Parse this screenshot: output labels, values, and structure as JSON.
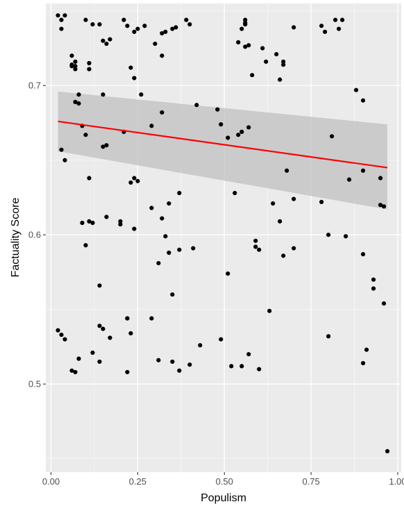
{
  "chart_data": {
    "type": "scatter",
    "title": "",
    "xlabel": "Populism",
    "ylabel": "Factuality Score",
    "xlim": [
      -0.015,
      1.01
    ],
    "ylim": [
      0.441,
      0.755
    ],
    "x_ticks": [
      0.0,
      0.25,
      0.5,
      0.75,
      1.0
    ],
    "x_tick_labels": [
      "0.00",
      "0.25",
      "0.50",
      "0.75",
      "1.00"
    ],
    "y_ticks": [
      0.5,
      0.6,
      0.7
    ],
    "y_tick_labels": [
      "0.5",
      "0.6",
      "0.7"
    ],
    "grid": true,
    "legend": "none",
    "colors": {
      "panel": "#ebebeb",
      "grid_major": "#ffffff",
      "points": "#000000",
      "fit_line": "#ff0000",
      "ci_band": "#bebebe"
    },
    "points": {
      "x": [
        0.02,
        0.03,
        0.03,
        0.04,
        0.06,
        0.06,
        0.06,
        0.07,
        0.07,
        0.07,
        0.08,
        0.08,
        0.1,
        0.11,
        0.11,
        0.12,
        0.14,
        0.15,
        0.16,
        0.17,
        0.21,
        0.22,
        0.24,
        0.25,
        0.27,
        0.3,
        0.32,
        0.32,
        0.33,
        0.35,
        0.36,
        0.39,
        0.4,
        0.54,
        0.55,
        0.56,
        0.56,
        0.57,
        0.56,
        0.56,
        0.58,
        0.61,
        0.62,
        0.65,
        0.67,
        0.7,
        0.78,
        0.79,
        0.82,
        0.83,
        0.84,
        0.07,
        0.09,
        0.1,
        0.11,
        0.15,
        0.15,
        0.16,
        0.21,
        0.23,
        0.24,
        0.24,
        0.25,
        0.26,
        0.29,
        0.32,
        0.34,
        0.37,
        0.42,
        0.48,
        0.49,
        0.51,
        0.54,
        0.57,
        0.59,
        0.64,
        0.66,
        0.67,
        0.68,
        0.81,
        0.86,
        0.88,
        0.9,
        0.9,
        0.95,
        0.03,
        0.04,
        0.09,
        0.1,
        0.11,
        0.12,
        0.14,
        0.14,
        0.15,
        0.16,
        0.2,
        0.2,
        0.22,
        0.22,
        0.23,
        0.24,
        0.29,
        0.31,
        0.32,
        0.33,
        0.34,
        0.35,
        0.37,
        0.41,
        0.51,
        0.53,
        0.55,
        0.59,
        0.6,
        0.66,
        0.67,
        0.7,
        0.78,
        0.8,
        0.85,
        0.9,
        0.93,
        0.95,
        0.96,
        0.02,
        0.03,
        0.04,
        0.06,
        0.07,
        0.08,
        0.12,
        0.14,
        0.17,
        0.22,
        0.23,
        0.29,
        0.31,
        0.35,
        0.37,
        0.4,
        0.43,
        0.49,
        0.52,
        0.55,
        0.57,
        0.6,
        0.63,
        0.7,
        0.8,
        0.9,
        0.91,
        0.93,
        0.96,
        0.97
      ],
      "y": [
        0.747,
        0.744,
        0.738,
        0.747,
        0.714,
        0.713,
        0.72,
        0.716,
        0.713,
        0.711,
        0.694,
        0.688,
        0.744,
        0.715,
        0.711,
        0.741,
        0.741,
        0.73,
        0.728,
        0.731,
        0.744,
        0.74,
        0.736,
        0.738,
        0.74,
        0.728,
        0.735,
        0.72,
        0.736,
        0.738,
        0.739,
        0.744,
        0.741,
        0.729,
        0.738,
        0.742,
        0.741,
        0.727,
        0.726,
        0.744,
        0.707,
        0.725,
        0.716,
        0.721,
        0.714,
        0.739,
        0.74,
        0.736,
        0.744,
        0.738,
        0.744,
        0.689,
        0.673,
        0.667,
        0.638,
        0.659,
        0.694,
        0.66,
        0.669,
        0.712,
        0.705,
        0.638,
        0.636,
        0.694,
        0.673,
        0.682,
        0.621,
        0.628,
        0.687,
        0.684,
        0.674,
        0.665,
        0.667,
        0.672,
        0.596,
        0.621,
        0.704,
        0.716,
        0.643,
        0.666,
        0.637,
        0.697,
        0.69,
        0.643,
        0.638,
        0.657,
        0.65,
        0.608,
        0.593,
        0.609,
        0.608,
        0.566,
        0.539,
        0.537,
        0.612,
        0.609,
        0.607,
        0.544,
        0.544,
        0.635,
        0.604,
        0.618,
        0.581,
        0.611,
        0.599,
        0.588,
        0.56,
        0.59,
        0.591,
        0.574,
        0.628,
        0.669,
        0.592,
        0.59,
        0.609,
        0.586,
        0.591,
        0.622,
        0.6,
        0.599,
        0.587,
        0.57,
        0.62,
        0.619,
        0.536,
        0.533,
        0.53,
        0.509,
        0.508,
        0.517,
        0.521,
        0.515,
        0.531,
        0.508,
        0.534,
        0.544,
        0.516,
        0.515,
        0.509,
        0.513,
        0.526,
        0.53,
        0.512,
        0.512,
        0.52,
        0.51,
        0.549,
        0.624,
        0.532,
        0.514,
        0.523,
        0.564,
        0.554,
        0.455
      ]
    },
    "fit": {
      "method": "linear",
      "x": [
        0.02,
        0.97
      ],
      "y": [
        0.676,
        0.645
      ],
      "ci_lower": [
        0.656,
        0.617
      ],
      "ci_upper": [
        0.696,
        0.674
      ]
    }
  }
}
